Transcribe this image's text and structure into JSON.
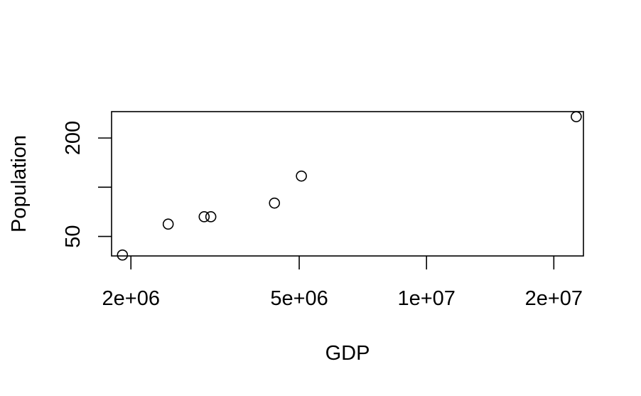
{
  "chart_data": {
    "type": "scatter",
    "title": "",
    "xlabel": "GDP",
    "ylabel": "Population",
    "x_scale": "log",
    "y_scale": "log",
    "xlim": [
      1800000,
      23500000
    ],
    "ylim": [
      38,
      290
    ],
    "x_ticks": [
      {
        "value": 2000000,
        "label": "2e+06"
      },
      {
        "value": 5000000,
        "label": "5e+06"
      },
      {
        "value": 10000000,
        "label": "1e+07"
      },
      {
        "value": 20000000,
        "label": "2e+07"
      }
    ],
    "y_ticks": [
      {
        "value": 50,
        "label": "50"
      },
      {
        "value": 100,
        "label": ""
      },
      {
        "value": 200,
        "label": "200"
      }
    ],
    "grid": false,
    "legend": "none",
    "marker": "open-circle",
    "points": [
      {
        "x": 1910000,
        "y": 38.5
      },
      {
        "x": 2450000,
        "y": 59.5
      },
      {
        "x": 2980000,
        "y": 66
      },
      {
        "x": 3090000,
        "y": 66
      },
      {
        "x": 4370000,
        "y": 80
      },
      {
        "x": 5060000,
        "y": 117
      },
      {
        "x": 22600000,
        "y": 270
      }
    ]
  }
}
